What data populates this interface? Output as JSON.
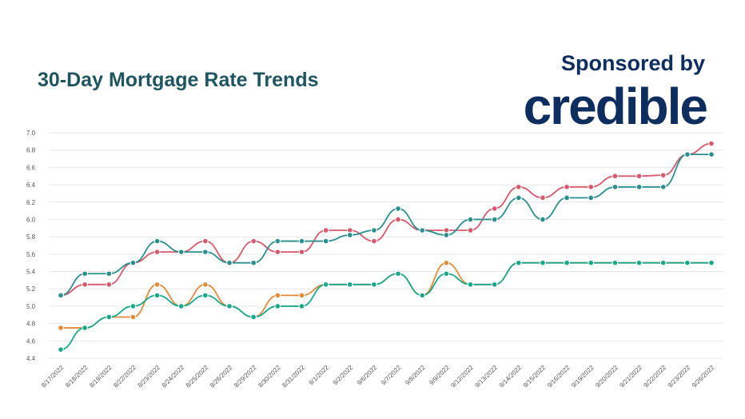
{
  "header": {
    "title": "30-Day Mortgage Rate Trends",
    "sponsor_label": "Sponsored by",
    "sponsor_logo": "credible"
  },
  "chart_data": {
    "type": "line",
    "title": "30-Day Mortgage Rate Trends",
    "xlabel": "",
    "ylabel": "",
    "ylim": [
      4.4,
      7.0
    ],
    "yticks": [
      "7.0",
      "6.8",
      "6.6",
      "6.4",
      "6.2",
      "6.0",
      "5.8",
      "5.6",
      "5.4",
      "5.2",
      "5.0",
      "4.8",
      "4.6",
      "4.4"
    ],
    "grid": true,
    "legend": "none",
    "categories": [
      "8/17/2022",
      "8/18/2022",
      "8/19/2022",
      "8/22/2022",
      "8/23/2022",
      "8/24/2022",
      "8/25/2022",
      "8/26/2022",
      "8/29/2022",
      "8/30/2022",
      "8/31/2022",
      "9/1/2022",
      "9/2/2022",
      "9/6/2022",
      "9/7/2022",
      "9/8/2022",
      "9/9/2022",
      "9/12/2022",
      "9/13/2022",
      "9/14/2022",
      "9/15/2022",
      "9/16/2022",
      "9/19/2022",
      "9/20/2022",
      "9/21/2022",
      "9/22/2022",
      "9/23/2022",
      "9/26/2022"
    ],
    "series": [
      {
        "color": "#d45a6c",
        "values": [
          5.125,
          5.25,
          5.25,
          5.5,
          5.625,
          5.625,
          5.75,
          5.5,
          5.75,
          5.625,
          5.625,
          5.875,
          5.875,
          5.75,
          6.0,
          5.875,
          5.875,
          5.875,
          6.125,
          6.375,
          6.25,
          6.375,
          6.375,
          6.5,
          6.5,
          6.51,
          6.75,
          6.875
        ]
      },
      {
        "color": "#2b8f8e",
        "values": [
          5.125,
          5.375,
          5.375,
          5.5,
          5.75,
          5.625,
          5.625,
          5.5,
          5.5,
          5.75,
          5.75,
          5.75,
          5.82,
          5.875,
          6.125,
          5.875,
          5.82,
          6.0,
          6.0,
          6.25,
          6.0,
          6.25,
          6.25,
          6.375,
          6.375,
          6.375,
          6.75,
          6.75
        ]
      },
      {
        "color": "#e38b3a",
        "values": [
          4.75,
          4.75,
          4.875,
          4.875,
          5.25,
          5.0,
          5.25,
          5.0,
          4.875,
          5.125,
          5.125,
          5.25,
          5.25,
          5.25,
          5.375,
          5.125,
          5.5,
          5.25,
          5.25,
          5.5,
          5.5,
          5.5,
          5.5,
          5.5,
          5.5,
          5.5,
          5.5,
          5.5
        ]
      },
      {
        "color": "#1aa88b",
        "values": [
          4.5,
          4.75,
          4.875,
          5.0,
          5.125,
          5.0,
          5.125,
          5.0,
          4.875,
          5.0,
          5.0,
          5.25,
          5.25,
          5.25,
          5.375,
          5.125,
          5.375,
          5.25,
          5.25,
          5.5,
          5.5,
          5.5,
          5.5,
          5.5,
          5.5,
          5.5,
          5.5,
          5.5
        ]
      }
    ]
  }
}
